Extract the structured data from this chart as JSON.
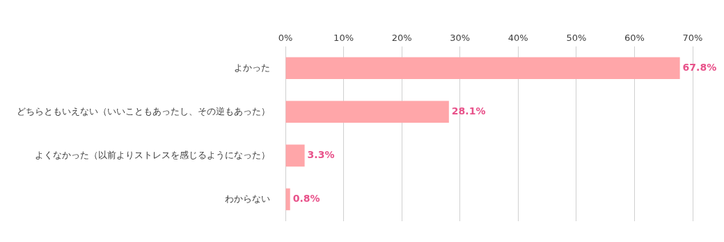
{
  "chart_data": {
    "type": "bar",
    "orientation": "horizontal",
    "categories": [
      "よかった",
      "どちらともいえない（いいこともあったし、その逆もあった）",
      "よくなかった（以前よりストレスを感じるようになった）",
      "わからない"
    ],
    "values": [
      67.8,
      28.1,
      3.3,
      0.8
    ],
    "value_labels": [
      "67.8%",
      "28.1%",
      "3.3%",
      "0.8%"
    ],
    "color": "#ffa6a9",
    "xlim": [
      0,
      70
    ],
    "xticks": [
      {
        "value": 0,
        "label": "0%"
      },
      {
        "value": 10,
        "label": "10%"
      },
      {
        "value": 20,
        "label": "20%"
      },
      {
        "value": 30,
        "label": "30%"
      },
      {
        "value": 40,
        "label": "40%"
      },
      {
        "value": 50,
        "label": "50%"
      },
      {
        "value": 60,
        "label": "60%"
      },
      {
        "value": 70,
        "label": "70%"
      }
    ],
    "grid": "x",
    "legend": false
  }
}
